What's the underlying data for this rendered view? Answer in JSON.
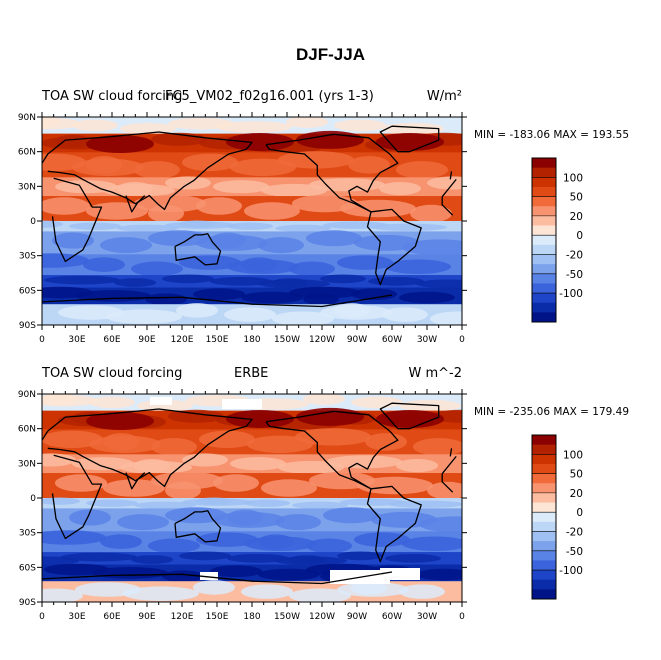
{
  "title": "DJF-JJA",
  "panels": [
    {
      "left_title": "TOA SW cloud forcing",
      "center_title": "FC5_VM02_f02g16.001 (yrs 1-3)",
      "units": "W/m²",
      "minmax": "MIN = -183.06  MAX = 193.55"
    },
    {
      "left_title": "TOA SW cloud forcing",
      "center_title": "ERBE",
      "units": "W m^-2",
      "minmax": "MIN = -235.06  MAX = 179.49"
    }
  ],
  "lat_labels": [
    "90N",
    "60N",
    "30N",
    "0",
    "30S",
    "60S",
    "90S"
  ],
  "lon_labels": [
    "0",
    "30E",
    "60E",
    "90E",
    "120E",
    "150E",
    "180",
    "150W",
    "120W",
    "90W",
    "60W",
    "30W",
    "0"
  ],
  "colorbar": {
    "labels": [
      "100",
      "50",
      "20",
      "0",
      "-20",
      "-50",
      "-100"
    ],
    "colors": [
      "#8b0000",
      "#b22200",
      "#cc3300",
      "#e04a14",
      "#f06a3a",
      "#f89370",
      "#fcbca0",
      "#fde5d5",
      "#dcebfa",
      "#bcd6f6",
      "#9ec0f2",
      "#7ca2ec",
      "#5a83e6",
      "#3a63dc",
      "#1e44c8",
      "#0a2ca8",
      "#001488"
    ]
  }
}
